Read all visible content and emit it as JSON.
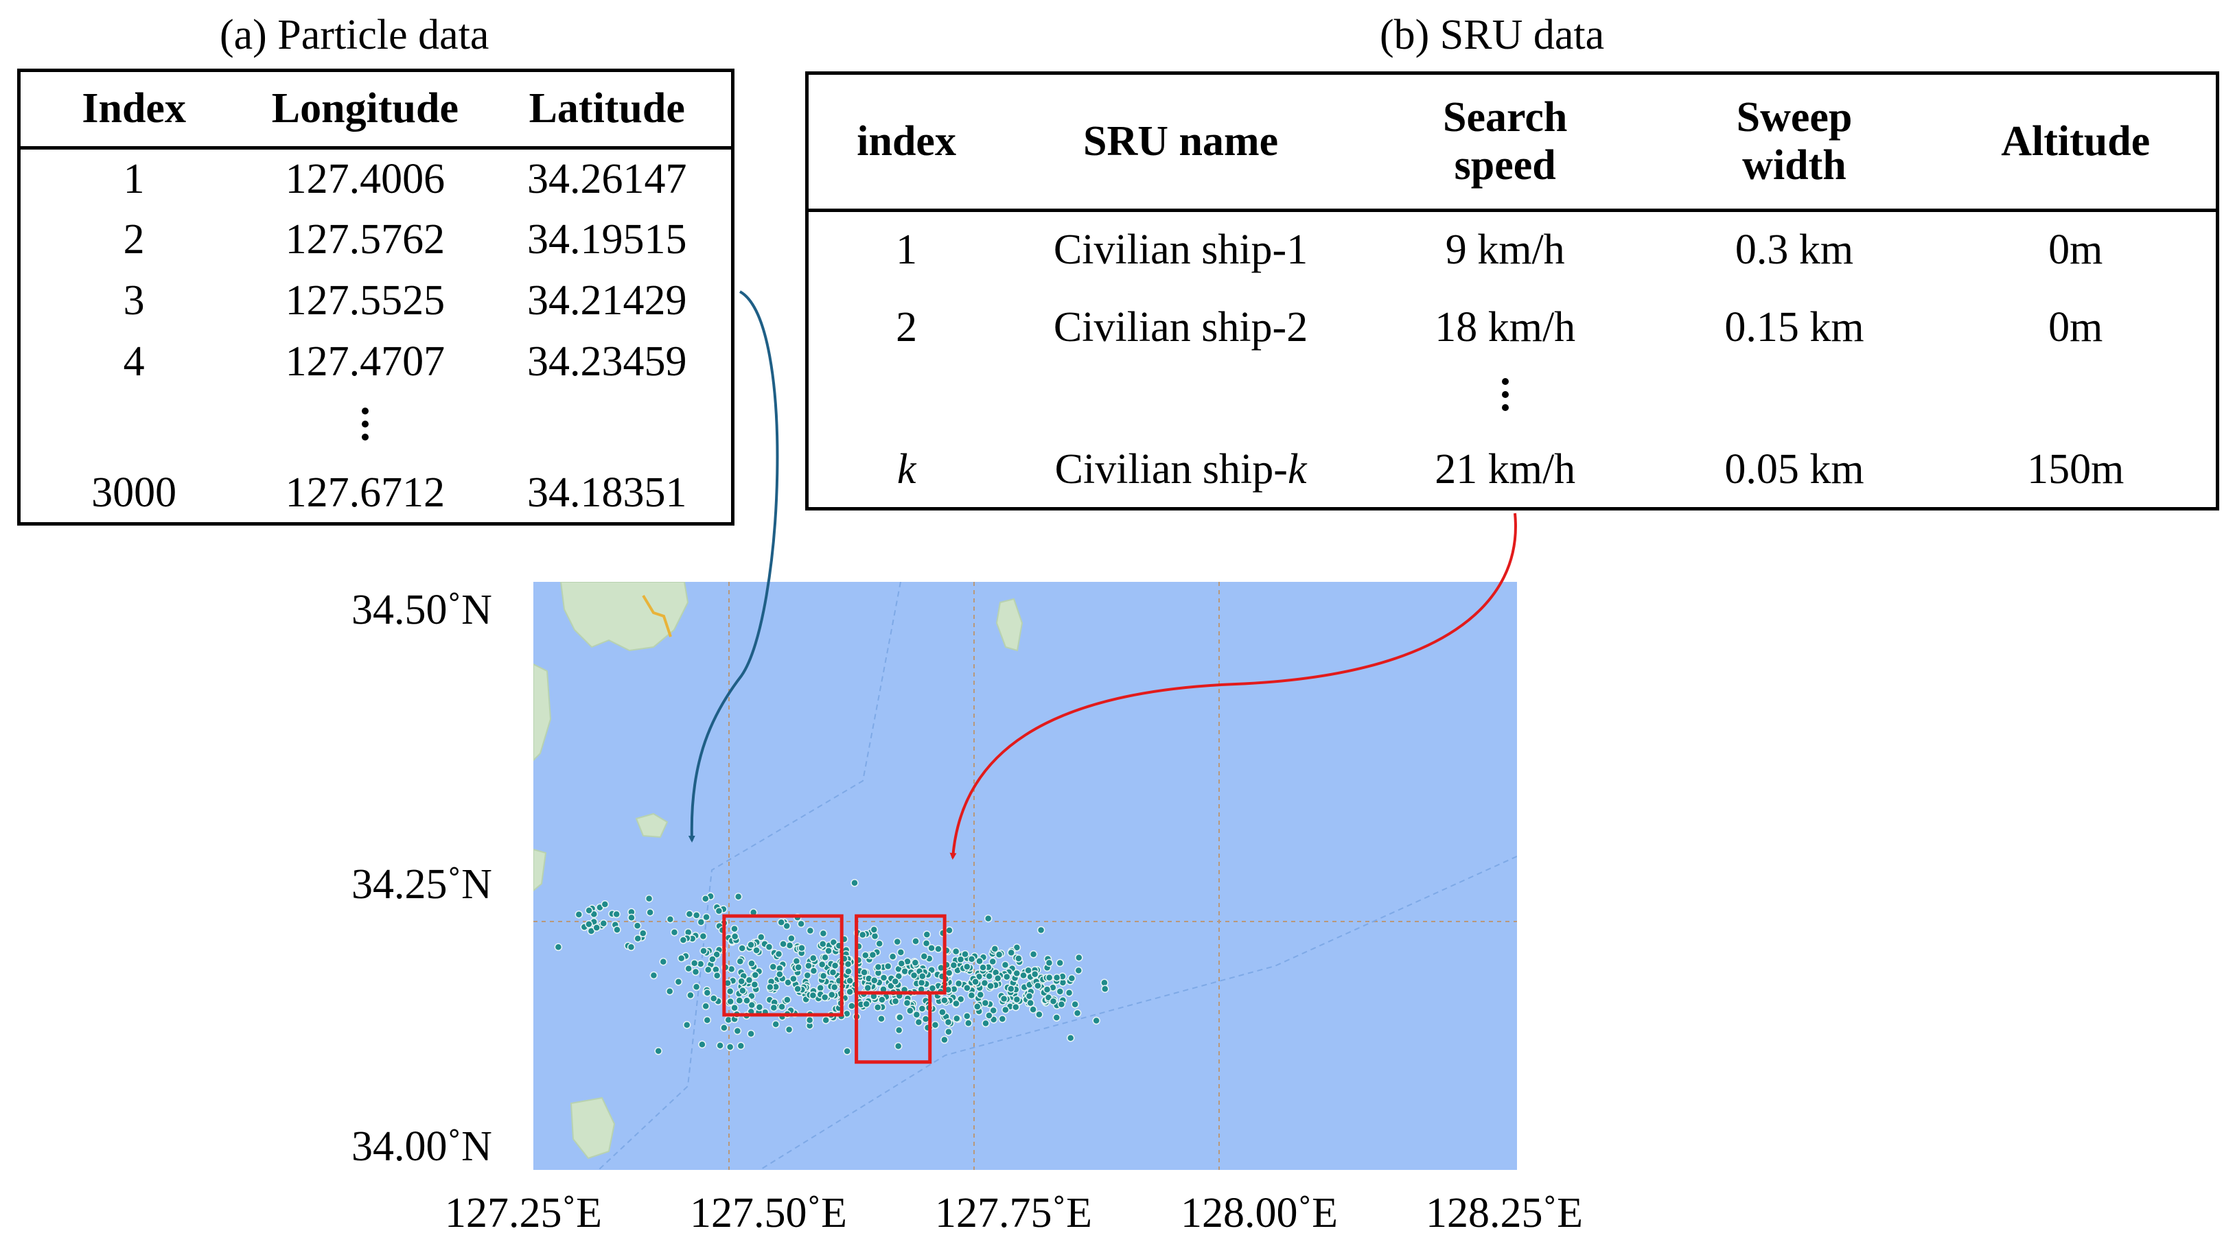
{
  "panel_a": {
    "title": "(a) Particle data",
    "headers": [
      "Index",
      "Longitude",
      "Latitude"
    ],
    "rows": [
      [
        "1",
        "127.4006",
        "34.26147"
      ],
      [
        "2",
        "127.5762",
        "34.19515"
      ],
      [
        "3",
        "127.5525",
        "34.21429"
      ],
      [
        "4",
        "127.4707",
        "34.23459"
      ]
    ],
    "last_row": [
      "3000",
      "127.6712",
      "34.18351"
    ]
  },
  "panel_b": {
    "title": "(b) SRU data",
    "headers": [
      "index",
      "SRU name",
      "Search\nspeed",
      "Sweep\nwidth",
      "Altitude"
    ],
    "rows": [
      [
        "1",
        "Civilian ship-1",
        "9 km/h",
        "0.3 km",
        "0m"
      ],
      [
        "2",
        "Civilian ship-2",
        "18 km/h",
        "0.15 km",
        "0m"
      ]
    ],
    "last_row": {
      "index": "k",
      "name_prefix": "Civilian ship-",
      "name_suffix": "k",
      "speed": "21 km/h",
      "width": "0.05 km",
      "altitude": "150m"
    }
  },
  "map": {
    "y_ticks": [
      "34.50˚N",
      "34.25˚N",
      "34.00˚N"
    ],
    "x_ticks": [
      "127.25˚E",
      "127.50˚E",
      "127.75˚E",
      "128.00˚E",
      "128.25˚E"
    ],
    "lon_range": [
      127.25,
      128.25
    ],
    "lat_range": [
      34.0,
      34.5
    ],
    "colors": {
      "sea": "#9ec1f7",
      "land": "#cfe3c8",
      "particle": "#1f8a8a",
      "search_area": "#e21b1b",
      "arrow_a": "#1f5f86",
      "arrow_b": "#e21b1b"
    },
    "particle_count": 3000,
    "search_areas": [
      {
        "lon": [
          127.495,
          127.615
        ],
        "lat": [
          34.165,
          34.255
        ]
      },
      {
        "lon": [
          127.63,
          127.72
        ],
        "lat": [
          34.185,
          34.255
        ]
      },
      {
        "lon": [
          127.63,
          127.705
        ],
        "lat": [
          34.122,
          34.185
        ]
      }
    ]
  }
}
